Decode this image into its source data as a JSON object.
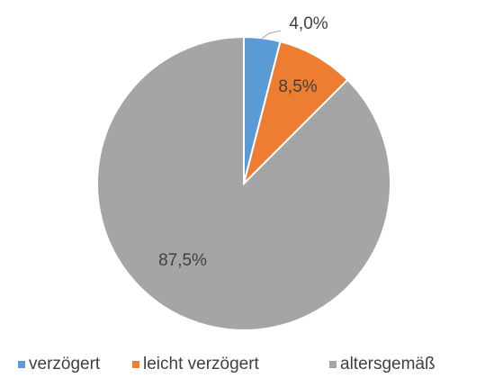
{
  "chart_data": {
    "type": "pie",
    "categories": [
      "verzögert",
      "leicht verzögert",
      "altersgemäß"
    ],
    "values": [
      4.0,
      8.5,
      87.5
    ],
    "value_labels": [
      "4,0%",
      "8,5%",
      "87,5%"
    ],
    "colors": [
      "#5b9bd5",
      "#ed7d31",
      "#a5a5a5"
    ],
    "legend": "bottom"
  }
}
